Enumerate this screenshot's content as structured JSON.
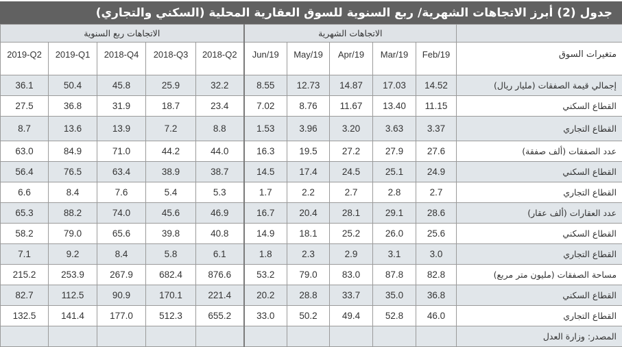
{
  "title": "جدول (2) أبرز الاتجاهات الشهرية/ ربع السنوية للسوق العقارية المحلية (السكني والتجاري)",
  "sections": {
    "quarterly": "الاتجاهات ربع السنوية",
    "monthly": "الاتجاهات الشهرية"
  },
  "columns": {
    "label": "متغيرات السوق",
    "quarterly": [
      "2019-Q2",
      "2019-Q1",
      "2018-Q4",
      "2018-Q3",
      "2018-Q2"
    ],
    "monthly": [
      "Jun/19",
      "May/19",
      "Apr/19",
      "Mar/19",
      "Feb/19"
    ]
  },
  "rows": [
    {
      "label": "إجمالي قيمة الصفقات (مليار ريال)",
      "q": [
        "36.1",
        "50.4",
        "45.8",
        "25.9",
        "32.2"
      ],
      "m": [
        "8.55",
        "12.73",
        "14.87",
        "17.03",
        "14.52"
      ]
    },
    {
      "label": "القطاع السكني",
      "q": [
        "27.5",
        "36.8",
        "31.9",
        "18.7",
        "23.4"
      ],
      "m": [
        "7.02",
        "8.76",
        "11.67",
        "13.40",
        "11.15"
      ]
    },
    {
      "label": "القطاع التجاري",
      "q": [
        "8.7",
        "13.6",
        "13.9",
        "7.2",
        "8.8"
      ],
      "m": [
        "1.53",
        "3.96",
        "3.20",
        "3.63",
        "3.37"
      ]
    },
    {
      "label": "عدد الصفقات (ألف صفقة)",
      "q": [
        "63.0",
        "84.9",
        "71.0",
        "44.2",
        "44.0"
      ],
      "m": [
        "16.3",
        "19.5",
        "27.2",
        "27.9",
        "27.6"
      ]
    },
    {
      "label": "القطاع السكني",
      "q": [
        "56.4",
        "76.5",
        "63.4",
        "38.9",
        "38.7"
      ],
      "m": [
        "14.5",
        "17.4",
        "24.5",
        "25.1",
        "24.9"
      ]
    },
    {
      "label": "القطاع التجاري",
      "q": [
        "6.6",
        "8.4",
        "7.6",
        "5.4",
        "5.3"
      ],
      "m": [
        "1.7",
        "2.2",
        "2.7",
        "2.8",
        "2.7"
      ]
    },
    {
      "label": "عدد العقارات (ألف عقار)",
      "q": [
        "65.3",
        "88.2",
        "74.0",
        "45.6",
        "46.9"
      ],
      "m": [
        "16.7",
        "20.4",
        "28.1",
        "29.1",
        "28.6"
      ]
    },
    {
      "label": "القطاع السكني",
      "q": [
        "58.2",
        "79.0",
        "65.6",
        "39.8",
        "40.8"
      ],
      "m": [
        "14.9",
        "18.1",
        "25.2",
        "26.0",
        "25.6"
      ]
    },
    {
      "label": "القطاع التجاري",
      "q": [
        "7.1",
        "9.2",
        "8.4",
        "5.8",
        "6.1"
      ],
      "m": [
        "1.8",
        "2.3",
        "2.9",
        "3.1",
        "3.0"
      ]
    },
    {
      "label": "مساحة الصفقات (مليون متر مربع)",
      "q": [
        "215.2",
        "253.9",
        "267.9",
        "682.4",
        "876.6"
      ],
      "m": [
        "53.2",
        "79.0",
        "83.0",
        "87.8",
        "82.8"
      ]
    },
    {
      "label": "القطاع السكني",
      "q": [
        "82.7",
        "112.5",
        "90.9",
        "170.1",
        "221.4"
      ],
      "m": [
        "20.2",
        "28.8",
        "33.7",
        "35.0",
        "36.8"
      ]
    },
    {
      "label": "القطاع التجاري",
      "q": [
        "132.5",
        "141.4",
        "177.0",
        "512.3",
        "655.2"
      ],
      "m": [
        "33.0",
        "50.2",
        "49.4",
        "52.8",
        "46.0"
      ]
    }
  ],
  "source": "المصدر: وزارة العدل"
}
